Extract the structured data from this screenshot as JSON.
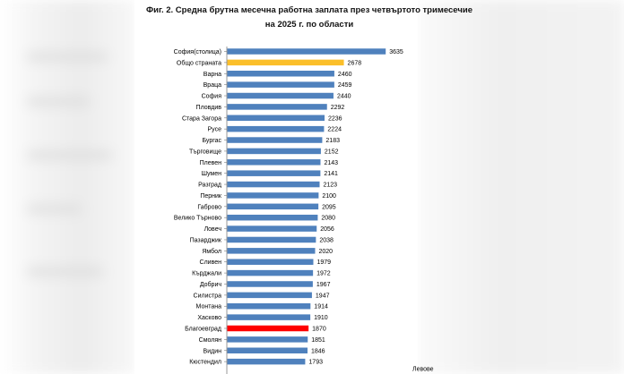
{
  "title_line1": "Фиг. 2. Средна брутна месечна работна заплата през четвъртото тримесечие",
  "title_line2": "на 2025 г. по области",
  "colors": {
    "default": "#4f81bd",
    "country": "#fbbf2a",
    "highlight": "#ff0000"
  },
  "chart_data": {
    "type": "bar",
    "orientation": "horizontal",
    "title": "Фиг. 2. Средна брутна месечна работна заплата през четвъртото тримесечие на 2025 г. по области",
    "xlabel": "Левове",
    "ylabel": "",
    "xlim": [
      0,
      4000
    ],
    "xticks": [
      0,
      1000,
      2000,
      3000,
      4000
    ],
    "grid": false,
    "data_labels": true,
    "categories": [
      "София(столица)",
      "Общо страната",
      "Варна",
      "Враца",
      "София",
      "Пловдив",
      "Стара Загора",
      "Русе",
      "Бургас",
      "Търговище",
      "Плевен",
      "Шумен",
      "Разград",
      "Перник",
      "Габрово",
      "Велико Търново",
      "Ловеч",
      "Пазарджик",
      "Ямбол",
      "Сливен",
      "Кърджали",
      "Добрич",
      "Силистра",
      "Монтана",
      "Хасково",
      "Благоевград",
      "Смолян",
      "Видин",
      "Кюстендил"
    ],
    "values": [
      3635,
      2678,
      2460,
      2459,
      2440,
      2292,
      2236,
      2224,
      2183,
      2152,
      2143,
      2141,
      2123,
      2100,
      2095,
      2080,
      2056,
      2038,
      2020,
      1979,
      1972,
      1967,
      1947,
      1914,
      1910,
      1870,
      1851,
      1846,
      1793
    ],
    "bar_colors": [
      "default",
      "country",
      "default",
      "default",
      "default",
      "default",
      "default",
      "default",
      "default",
      "default",
      "default",
      "default",
      "default",
      "default",
      "default",
      "default",
      "default",
      "default",
      "default",
      "default",
      "default",
      "default",
      "default",
      "default",
      "default",
      "highlight",
      "default",
      "default",
      "default"
    ]
  }
}
